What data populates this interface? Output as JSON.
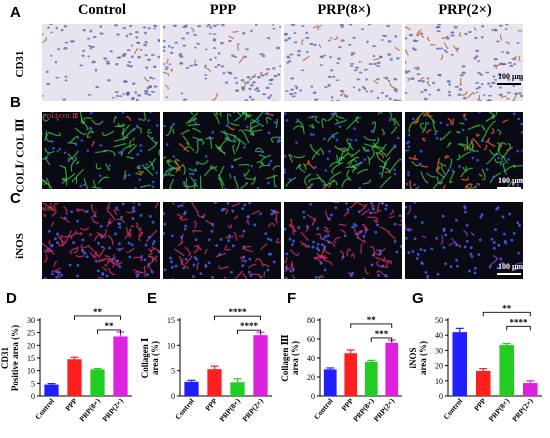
{
  "panel_letters": [
    "A",
    "B",
    "C",
    "D",
    "E",
    "F",
    "G"
  ],
  "columns": [
    "Control",
    "PPP",
    "PRP(8×)",
    "PRP(2×)"
  ],
  "rows": {
    "A": {
      "label": "CD31",
      "scale": "100 μm"
    },
    "B": {
      "label": "COLⅠ/ COL Ⅲ",
      "scale": "100 μm",
      "legend": "COLⅠ/COL Ⅲ"
    },
    "C": {
      "label": "iNOS",
      "scale": "100 μm",
      "legend": "iNOS"
    }
  },
  "colors": {
    "Control": "#1f1fff",
    "PPP": "#ff1f1f",
    "PRP8": "#22cc22",
    "PRP2": "#dd22dd",
    "ihc_bg": "#e8e4ef",
    "fluor_bg": "#0a0a14"
  },
  "chart_data": [
    {
      "panel": "D",
      "type": "bar",
      "ylabel": [
        "CD31",
        "Positive area (%)"
      ],
      "categories": [
        "Control",
        "PPP",
        "PRP(8×)",
        "PRP(2×)"
      ],
      "values": [
        4.5,
        14.5,
        10.5,
        23.5
      ],
      "errors": [
        0.4,
        0.8,
        0.3,
        1.8
      ],
      "ylim": [
        0,
        30
      ],
      "yticks": [
        0,
        5,
        10,
        15,
        20,
        25,
        30
      ],
      "brackets": [
        {
          "from": 1,
          "to": 3,
          "label": "**",
          "level": 1
        },
        {
          "from": 2,
          "to": 3,
          "label": "**",
          "level": 0
        }
      ]
    },
    {
      "panel": "E",
      "type": "bar",
      "ylabel": [
        "Collagen Ⅰ",
        "area (%)"
      ],
      "categories": [
        "Control",
        "PPP",
        "PRP(8×)",
        "PRP(2×)"
      ],
      "values": [
        2.8,
        5.3,
        2.7,
        12.0
      ],
      "errors": [
        0.3,
        0.6,
        0.7,
        0.6
      ],
      "ylim": [
        0,
        15
      ],
      "yticks": [
        0,
        5,
        10,
        15
      ],
      "brackets": [
        {
          "from": 1,
          "to": 3,
          "label": "****",
          "level": 1
        },
        {
          "from": 2,
          "to": 3,
          "label": "****",
          "level": 0
        }
      ]
    },
    {
      "panel": "F",
      "type": "bar",
      "ylabel": [
        "Collagen Ⅲ",
        "area (%)"
      ],
      "categories": [
        "Control",
        "PPP",
        "PRP(8×)",
        "PRP(2×)"
      ],
      "values": [
        28,
        45,
        36,
        56
      ],
      "errors": [
        1.5,
        3.5,
        1.5,
        3.0
      ],
      "ylim": [
        0,
        80
      ],
      "yticks": [
        0,
        20,
        40,
        60,
        80
      ],
      "brackets": [
        {
          "from": 1,
          "to": 3,
          "label": "**",
          "level": 1
        },
        {
          "from": 2,
          "to": 3,
          "label": "***",
          "level": 0
        }
      ]
    },
    {
      "panel": "G",
      "type": "bar",
      "ylabel": [
        "iNOS",
        "area (%)"
      ],
      "categories": [
        "Control",
        "PPP",
        "PRP(8×)",
        "PRP(2×)"
      ],
      "values": [
        42,
        16.5,
        33.5,
        8.5
      ],
      "errors": [
        2.5,
        1.5,
        1.0,
        1.5
      ],
      "ylim": [
        0,
        50
      ],
      "yticks": [
        0,
        10,
        20,
        30,
        40,
        50
      ],
      "brackets": [
        {
          "from": 1,
          "to": 3,
          "label": "**",
          "level": 1
        },
        {
          "from": 2,
          "to": 3,
          "label": "****",
          "level": 0
        }
      ]
    }
  ]
}
